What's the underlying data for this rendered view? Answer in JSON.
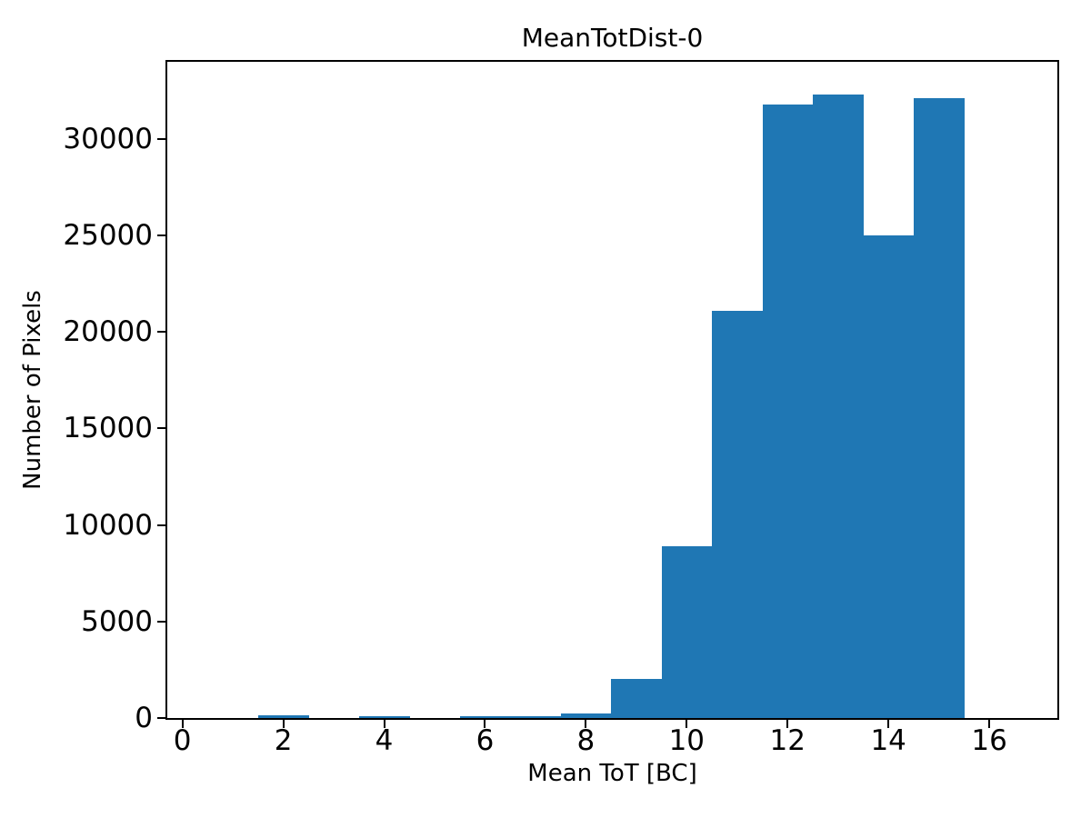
{
  "chart_data": {
    "type": "bar",
    "subtype": "histogram",
    "title": "MeanTotDist-0",
    "xlabel": "Mean ToT [BC]",
    "ylabel": "Number of Pixels",
    "bar_color": "#1f77b4",
    "background_color": "#ffffff",
    "grid": "off",
    "legend": "none",
    "bin_edges": [
      0.5,
      1.5,
      2.5,
      3.5,
      4.5,
      5.5,
      6.5,
      7.5,
      8.5,
      9.5,
      10.5,
      11.5,
      12.5,
      13.5,
      14.5,
      15.5
    ],
    "counts": [
      0,
      120,
      0,
      90,
      0,
      100,
      110,
      220,
      2030,
      8900,
      21100,
      31800,
      32300,
      25000,
      32100
    ],
    "xticks": [
      0,
      2,
      4,
      6,
      8,
      10,
      12,
      14,
      16
    ],
    "yticks": [
      0,
      5000,
      10000,
      15000,
      20000,
      25000,
      30000
    ],
    "xlim": [
      -0.3,
      17.35
    ],
    "ylim": [
      0,
      34000
    ]
  }
}
